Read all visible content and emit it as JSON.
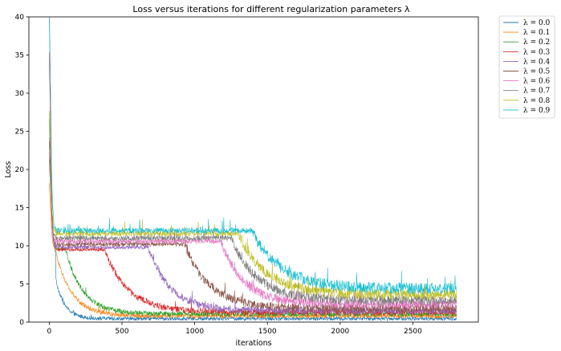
{
  "chart_data": {
    "type": "line",
    "title": "Loss versus iterations for different regularization parameters λ",
    "xlabel": "iterations",
    "ylabel": "Loss",
    "xlim": [
      -140,
      2950
    ],
    "ylim": [
      0,
      40
    ],
    "xticks": [
      0,
      500,
      1000,
      1500,
      2000,
      2500
    ],
    "yticks": [
      0,
      5,
      10,
      15,
      20,
      25,
      30,
      35,
      40
    ],
    "grid": false,
    "legend_position": "outside-top-right",
    "series": [
      {
        "name": "λ = 0.0",
        "color": "#1f77b4",
        "start": 9.2,
        "plateau": 9.0,
        "drop_at": 15,
        "final": 0.45,
        "decay": 60,
        "noise": 0.25,
        "spike": 42
      },
      {
        "name": "λ = 0.1",
        "color": "#ff7f0e",
        "start": 18.0,
        "plateau": 9.5,
        "drop_at": 40,
        "final": 0.8,
        "decay": 110,
        "noise": 0.3,
        "spike": 18
      },
      {
        "name": "λ = 0.2",
        "color": "#2ca02c",
        "start": 26.5,
        "plateau": 9.6,
        "drop_at": 110,
        "final": 1.05,
        "decay": 120,
        "noise": 0.35,
        "spike": 26.5
      },
      {
        "name": "λ = 0.3",
        "color": "#d62728",
        "start": 35.2,
        "plateau": 9.5,
        "drop_at": 380,
        "final": 1.3,
        "decay": 160,
        "noise": 0.45,
        "spike": 35.2
      },
      {
        "name": "λ = 0.4",
        "color": "#9467bd",
        "start": 24.0,
        "plateau": 9.8,
        "drop_at": 680,
        "final": 1.5,
        "decay": 150,
        "noise": 0.5,
        "spike": 24
      },
      {
        "name": "λ = 0.5",
        "color": "#8c564b",
        "start": 23.5,
        "plateau": 10.2,
        "drop_at": 930,
        "final": 1.8,
        "decay": 170,
        "noise": 0.55,
        "spike": 23.5
      },
      {
        "name": "λ = 0.6",
        "color": "#e377c2",
        "start": 22.0,
        "plateau": 10.6,
        "drop_at": 1180,
        "final": 2.3,
        "decay": 160,
        "noise": 0.6,
        "spike": 22
      },
      {
        "name": "λ = 0.7",
        "color": "#7f7f7f",
        "start": 21.0,
        "plateau": 11.0,
        "drop_at": 1250,
        "final": 2.8,
        "decay": 180,
        "noise": 0.65,
        "spike": 21
      },
      {
        "name": "λ = 0.8",
        "color": "#bcbd22",
        "start": 28.0,
        "plateau": 11.6,
        "drop_at": 1300,
        "final": 3.6,
        "decay": 190,
        "noise": 0.7,
        "spike": 28
      },
      {
        "name": "λ = 0.9",
        "color": "#17becf",
        "start": 40.0,
        "plateau": 12.0,
        "drop_at": 1390,
        "final": 4.4,
        "decay": 200,
        "noise": 0.75,
        "spike": 40
      }
    ],
    "iterations": 2800
  }
}
